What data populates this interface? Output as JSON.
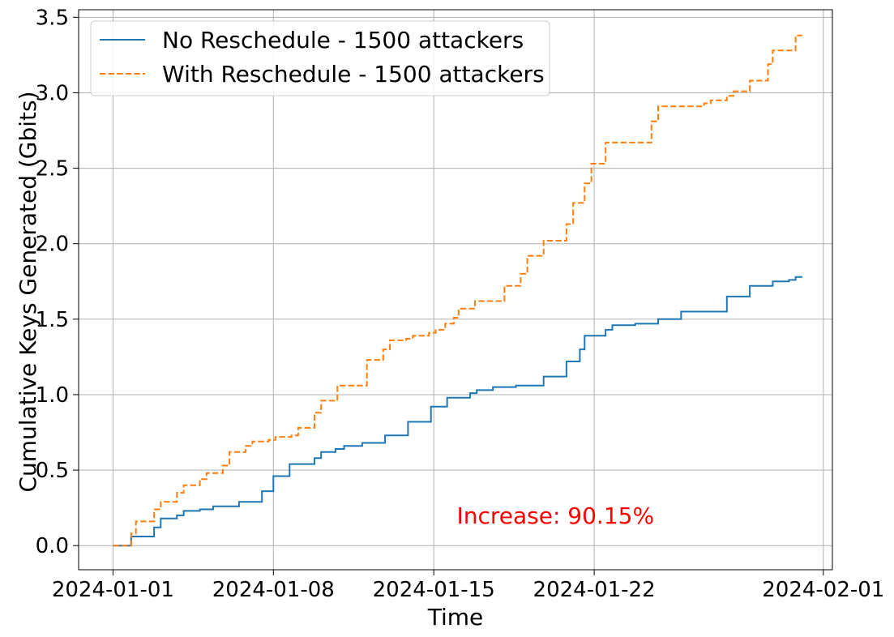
{
  "chart_data": {
    "type": "line",
    "xlabel": "Time",
    "ylabel": "Cumulative Keys Generated (Gbits)",
    "xlim": [
      "2023-12-30T12:00",
      "2024-02-01T09:30"
    ],
    "ylim": [
      -0.16,
      3.55
    ],
    "x_ticks": [
      "2024-01-01",
      "2024-01-08",
      "2024-01-15",
      "2024-01-22",
      "2024-02-01"
    ],
    "y_ticks": [
      0.0,
      0.5,
      1.0,
      1.5,
      2.0,
      2.5,
      3.0,
      3.5
    ],
    "y_tick_labels": [
      "0.0",
      "0.5",
      "1.0",
      "1.5",
      "2.0",
      "2.5",
      "3.0",
      "3.5"
    ],
    "grid": true,
    "legend_position": "top-left",
    "annotation": {
      "text": "Increase: 90.15%",
      "x": "2024-01-16T00:00",
      "y": 0.2,
      "color": "#ff0000"
    },
    "series": [
      {
        "name": "No Reschedule - 1500 attackers",
        "color": "#1f77b4",
        "style": "solid",
        "points": [
          [
            "2024-01-01T00:00",
            0.0
          ],
          [
            "2024-01-01T19:00",
            0.0
          ],
          [
            "2024-01-01T19:00",
            0.06
          ],
          [
            "2024-01-02T19:00",
            0.06
          ],
          [
            "2024-01-02T19:00",
            0.12
          ],
          [
            "2024-01-03T02:00",
            0.12
          ],
          [
            "2024-01-03T02:00",
            0.18
          ],
          [
            "2024-01-03T19:00",
            0.18
          ],
          [
            "2024-01-03T19:00",
            0.2
          ],
          [
            "2024-01-04T02:00",
            0.2
          ],
          [
            "2024-01-04T02:00",
            0.23
          ],
          [
            "2024-01-04T19:00",
            0.23
          ],
          [
            "2024-01-04T19:00",
            0.24
          ],
          [
            "2024-01-05T09:00",
            0.24
          ],
          [
            "2024-01-05T09:00",
            0.26
          ],
          [
            "2024-01-06T12:00",
            0.26
          ],
          [
            "2024-01-06T12:00",
            0.29
          ],
          [
            "2024-01-07T12:00",
            0.29
          ],
          [
            "2024-01-07T12:00",
            0.36
          ],
          [
            "2024-01-08T00:00",
            0.36
          ],
          [
            "2024-01-08T00:00",
            0.46
          ],
          [
            "2024-01-08T17:00",
            0.46
          ],
          [
            "2024-01-08T17:00",
            0.54
          ],
          [
            "2024-01-09T19:00",
            0.54
          ],
          [
            "2024-01-09T19:00",
            0.58
          ],
          [
            "2024-01-10T02:00",
            0.58
          ],
          [
            "2024-01-10T02:00",
            0.62
          ],
          [
            "2024-01-10T17:00",
            0.62
          ],
          [
            "2024-01-10T17:00",
            0.64
          ],
          [
            "2024-01-11T02:00",
            0.64
          ],
          [
            "2024-01-11T02:00",
            0.66
          ],
          [
            "2024-01-11T21:00",
            0.66
          ],
          [
            "2024-01-11T21:00",
            0.68
          ],
          [
            "2024-01-12T21:00",
            0.68
          ],
          [
            "2024-01-12T21:00",
            0.73
          ],
          [
            "2024-01-13T21:00",
            0.73
          ],
          [
            "2024-01-13T21:00",
            0.82
          ],
          [
            "2024-01-14T21:00",
            0.82
          ],
          [
            "2024-01-14T21:00",
            0.92
          ],
          [
            "2024-01-15T14:00",
            0.92
          ],
          [
            "2024-01-15T14:00",
            0.98
          ],
          [
            "2024-01-16T14:00",
            0.98
          ],
          [
            "2024-01-16T14:00",
            1.01
          ],
          [
            "2024-01-16T21:00",
            1.01
          ],
          [
            "2024-01-16T21:00",
            1.03
          ],
          [
            "2024-01-17T14:00",
            1.03
          ],
          [
            "2024-01-17T14:00",
            1.05
          ],
          [
            "2024-01-18T14:00",
            1.05
          ],
          [
            "2024-01-18T14:00",
            1.06
          ],
          [
            "2024-01-19T19:00",
            1.06
          ],
          [
            "2024-01-19T19:00",
            1.12
          ],
          [
            "2024-01-20T19:00",
            1.12
          ],
          [
            "2024-01-20T19:00",
            1.22
          ],
          [
            "2024-01-21T09:00",
            1.22
          ],
          [
            "2024-01-21T09:00",
            1.3
          ],
          [
            "2024-01-21T14:00",
            1.3
          ],
          [
            "2024-01-21T14:00",
            1.39
          ],
          [
            "2024-01-22T12:00",
            1.39
          ],
          [
            "2024-01-22T12:00",
            1.43
          ],
          [
            "2024-01-22T19:00",
            1.43
          ],
          [
            "2024-01-22T19:00",
            1.46
          ],
          [
            "2024-01-23T19:00",
            1.46
          ],
          [
            "2024-01-23T19:00",
            1.47
          ],
          [
            "2024-01-24T19:00",
            1.47
          ],
          [
            "2024-01-24T19:00",
            1.5
          ],
          [
            "2024-01-25T19:00",
            1.5
          ],
          [
            "2024-01-25T19:00",
            1.55
          ],
          [
            "2024-01-27T19:00",
            1.55
          ],
          [
            "2024-01-27T19:00",
            1.65
          ],
          [
            "2024-01-28T19:00",
            1.65
          ],
          [
            "2024-01-28T19:00",
            1.72
          ],
          [
            "2024-01-29T19:00",
            1.72
          ],
          [
            "2024-01-29T19:00",
            1.75
          ],
          [
            "2024-01-30T12:00",
            1.75
          ],
          [
            "2024-01-30T12:00",
            1.76
          ],
          [
            "2024-01-30T19:00",
            1.76
          ],
          [
            "2024-01-30T19:00",
            1.78
          ],
          [
            "2024-01-31T02:00",
            1.78
          ]
        ]
      },
      {
        "name": "With Reschedule - 1500 attackers",
        "color": "#ff7f0e",
        "style": "dashed",
        "points": [
          [
            "2024-01-01T00:00",
            0.0
          ],
          [
            "2024-01-01T19:00",
            0.0
          ],
          [
            "2024-01-01T19:00",
            0.08
          ],
          [
            "2024-01-02T00:00",
            0.08
          ],
          [
            "2024-01-02T00:00",
            0.16
          ],
          [
            "2024-01-02T19:00",
            0.16
          ],
          [
            "2024-01-02T19:00",
            0.24
          ],
          [
            "2024-01-03T02:00",
            0.24
          ],
          [
            "2024-01-03T02:00",
            0.29
          ],
          [
            "2024-01-03T19:00",
            0.29
          ],
          [
            "2024-01-03T19:00",
            0.35
          ],
          [
            "2024-01-04T02:00",
            0.35
          ],
          [
            "2024-01-04T02:00",
            0.4
          ],
          [
            "2024-01-04T19:00",
            0.4
          ],
          [
            "2024-01-04T19:00",
            0.44
          ],
          [
            "2024-01-05T02:00",
            0.44
          ],
          [
            "2024-01-05T02:00",
            0.48
          ],
          [
            "2024-01-05T19:00",
            0.48
          ],
          [
            "2024-01-05T19:00",
            0.53
          ],
          [
            "2024-01-06T02:00",
            0.53
          ],
          [
            "2024-01-06T02:00",
            0.62
          ],
          [
            "2024-01-06T19:00",
            0.62
          ],
          [
            "2024-01-06T19:00",
            0.66
          ],
          [
            "2024-01-07T02:00",
            0.66
          ],
          [
            "2024-01-07T02:00",
            0.69
          ],
          [
            "2024-01-07T19:00",
            0.69
          ],
          [
            "2024-01-07T19:00",
            0.7
          ],
          [
            "2024-01-08T02:00",
            0.7
          ],
          [
            "2024-01-08T02:00",
            0.72
          ],
          [
            "2024-01-08T19:00",
            0.72
          ],
          [
            "2024-01-08T19:00",
            0.73
          ],
          [
            "2024-01-09T02:00",
            0.73
          ],
          [
            "2024-01-09T02:00",
            0.78
          ],
          [
            "2024-01-09T19:00",
            0.78
          ],
          [
            "2024-01-09T19:00",
            0.88
          ],
          [
            "2024-01-10T02:00",
            0.88
          ],
          [
            "2024-01-10T02:00",
            0.96
          ],
          [
            "2024-01-10T19:00",
            0.96
          ],
          [
            "2024-01-10T19:00",
            1.06
          ],
          [
            "2024-01-12T02:00",
            1.06
          ],
          [
            "2024-01-12T02:00",
            1.23
          ],
          [
            "2024-01-12T19:00",
            1.23
          ],
          [
            "2024-01-12T19:00",
            1.3
          ],
          [
            "2024-01-13T02:00",
            1.3
          ],
          [
            "2024-01-13T02:00",
            1.36
          ],
          [
            "2024-01-13T19:00",
            1.36
          ],
          [
            "2024-01-13T19:00",
            1.37
          ],
          [
            "2024-01-14T02:00",
            1.37
          ],
          [
            "2024-01-14T02:00",
            1.39
          ],
          [
            "2024-01-14T19:00",
            1.39
          ],
          [
            "2024-01-14T19:00",
            1.41
          ],
          [
            "2024-01-15T02:00",
            1.41
          ],
          [
            "2024-01-15T02:00",
            1.43
          ],
          [
            "2024-01-15T12:00",
            1.43
          ],
          [
            "2024-01-15T12:00",
            1.47
          ],
          [
            "2024-01-15T21:00",
            1.47
          ],
          [
            "2024-01-15T21:00",
            1.51
          ],
          [
            "2024-01-16T02:00",
            1.51
          ],
          [
            "2024-01-16T02:00",
            1.57
          ],
          [
            "2024-01-16T19:00",
            1.57
          ],
          [
            "2024-01-16T19:00",
            1.62
          ],
          [
            "2024-01-18T02:00",
            1.62
          ],
          [
            "2024-01-18T02:00",
            1.72
          ],
          [
            "2024-01-18T19:00",
            1.72
          ],
          [
            "2024-01-18T19:00",
            1.8
          ],
          [
            "2024-01-19T02:00",
            1.8
          ],
          [
            "2024-01-19T02:00",
            1.92
          ],
          [
            "2024-01-19T19:00",
            1.92
          ],
          [
            "2024-01-19T19:00",
            2.02
          ],
          [
            "2024-01-20T19:00",
            2.02
          ],
          [
            "2024-01-20T19:00",
            2.13
          ],
          [
            "2024-01-21T02:00",
            2.13
          ],
          [
            "2024-01-21T02:00",
            2.27
          ],
          [
            "2024-01-21T14:00",
            2.27
          ],
          [
            "2024-01-21T14:00",
            2.4
          ],
          [
            "2024-01-21T21:00",
            2.4
          ],
          [
            "2024-01-21T21:00",
            2.53
          ],
          [
            "2024-01-22T12:00",
            2.53
          ],
          [
            "2024-01-22T12:00",
            2.67
          ],
          [
            "2024-01-24T12:00",
            2.67
          ],
          [
            "2024-01-24T12:00",
            2.81
          ],
          [
            "2024-01-24T19:00",
            2.81
          ],
          [
            "2024-01-24T19:00",
            2.91
          ],
          [
            "2024-01-26T19:00",
            2.91
          ],
          [
            "2024-01-26T19:00",
            2.93
          ],
          [
            "2024-01-27T02:00",
            2.93
          ],
          [
            "2024-01-27T02:00",
            2.95
          ],
          [
            "2024-01-27T19:00",
            2.95
          ],
          [
            "2024-01-27T19:00",
            2.98
          ],
          [
            "2024-01-28T02:00",
            2.98
          ],
          [
            "2024-01-28T02:00",
            3.01
          ],
          [
            "2024-01-28T19:00",
            3.01
          ],
          [
            "2024-01-28T19:00",
            3.08
          ],
          [
            "2024-01-29T14:00",
            3.08
          ],
          [
            "2024-01-29T14:00",
            3.19
          ],
          [
            "2024-01-29T19:00",
            3.19
          ],
          [
            "2024-01-29T19:00",
            3.28
          ],
          [
            "2024-01-30T19:00",
            3.28
          ],
          [
            "2024-01-30T19:00",
            3.38
          ],
          [
            "2024-01-31T02:00",
            3.38
          ]
        ]
      }
    ]
  }
}
